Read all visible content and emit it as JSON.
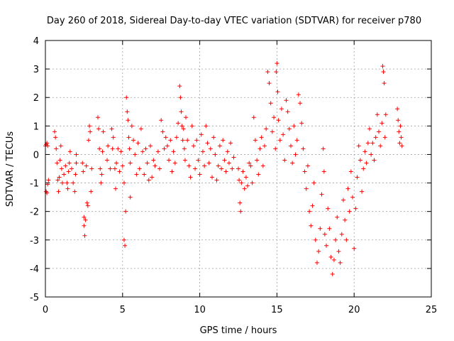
{
  "chart_data": {
    "type": "scatter",
    "title": "Day 260 of 2018, Sidereal Day-to-day VTEC variation (SDTVAR) for receiver p780",
    "xlabel": "GPS time / hours",
    "ylabel": "SDTVAR / TECUs",
    "xlim": [
      0,
      25
    ],
    "ylim": [
      -5,
      4
    ],
    "xticks": [
      0,
      5,
      10,
      15,
      20,
      25
    ],
    "yticks": [
      -5,
      -4,
      -3,
      -2,
      -1,
      0,
      1,
      2,
      3,
      4
    ],
    "xtick_labels": [
      "0",
      "5",
      "10",
      "15",
      "20",
      "25"
    ],
    "ytick_labels": [
      "-5",
      "-4",
      "-3",
      "-2",
      "-1",
      "0",
      "1",
      "2",
      "3",
      "4"
    ],
    "grid": true,
    "marker": "+",
    "color": "#ff0000",
    "series": [
      {
        "name": "SDTVAR",
        "points": [
          [
            0.0,
            0.3
          ],
          [
            0.05,
            0.35
          ],
          [
            0.1,
            0.4
          ],
          [
            0.15,
            0.3
          ],
          [
            0.05,
            -1.3
          ],
          [
            0.1,
            -1.35
          ],
          [
            0.15,
            -1.05
          ],
          [
            0.2,
            -0.9
          ],
          [
            0.6,
            0.8
          ],
          [
            0.65,
            0.6
          ],
          [
            0.7,
            0.2
          ],
          [
            0.75,
            -0.3
          ],
          [
            0.8,
            -0.9
          ],
          [
            0.85,
            -1.3
          ],
          [
            0.9,
            -0.8
          ],
          [
            0.95,
            -0.2
          ],
          [
            1.0,
            0.3
          ],
          [
            1.05,
            -0.5
          ],
          [
            1.1,
            -1.0
          ],
          [
            1.2,
            -0.7
          ],
          [
            1.3,
            -0.4
          ],
          [
            1.4,
            -1.0
          ],
          [
            1.45,
            -1.2
          ],
          [
            1.5,
            -0.6
          ],
          [
            1.55,
            -0.3
          ],
          [
            1.6,
            0.1
          ],
          [
            1.7,
            -0.5
          ],
          [
            1.8,
            -1.0
          ],
          [
            1.9,
            -1.3
          ],
          [
            1.95,
            -0.7
          ],
          [
            2.0,
            -0.3
          ],
          [
            2.0,
            0.0
          ],
          [
            2.4,
            -0.3
          ],
          [
            2.45,
            -0.6
          ],
          [
            2.5,
            -2.2
          ],
          [
            2.5,
            -2.5
          ],
          [
            2.55,
            -2.85
          ],
          [
            2.6,
            -2.3
          ],
          [
            2.65,
            -0.4
          ],
          [
            2.7,
            -1.7
          ],
          [
            2.75,
            -1.8
          ],
          [
            2.8,
            0.5
          ],
          [
            2.85,
            1.0
          ],
          [
            2.9,
            0.8
          ],
          [
            2.95,
            -1.3
          ],
          [
            3.0,
            -0.5
          ],
          [
            3.4,
            1.3
          ],
          [
            3.45,
            0.9
          ],
          [
            3.5,
            0.2
          ],
          [
            3.55,
            -0.5
          ],
          [
            3.6,
            -1.0
          ],
          [
            3.65,
            -0.7
          ],
          [
            3.7,
            0.1
          ],
          [
            3.75,
            0.8
          ],
          [
            4.0,
            -0.2
          ],
          [
            4.05,
            0.3
          ],
          [
            4.2,
            -0.5
          ],
          [
            4.3,
            0.9
          ],
          [
            4.35,
            0.2
          ],
          [
            4.4,
            0.6
          ],
          [
            4.5,
            -0.5
          ],
          [
            4.55,
            -1.2
          ],
          [
            4.6,
            -0.3
          ],
          [
            4.7,
            0.2
          ],
          [
            4.8,
            -0.6
          ],
          [
            4.9,
            0.1
          ],
          [
            5.0,
            -0.4
          ],
          [
            5.1,
            -1.0
          ],
          [
            5.1,
            -3.0
          ],
          [
            5.15,
            -3.2
          ],
          [
            5.2,
            -2.0
          ],
          [
            5.25,
            2.0
          ],
          [
            5.3,
            1.5
          ],
          [
            5.35,
            1.2
          ],
          [
            5.4,
            0.6
          ],
          [
            5.45,
            0.2
          ],
          [
            5.5,
            -0.3
          ],
          [
            5.5,
            -1.5
          ],
          [
            5.6,
            1.0
          ],
          [
            5.7,
            0.5
          ],
          [
            5.8,
            0.0
          ],
          [
            5.9,
            -0.7
          ],
          [
            6.0,
            0.4
          ],
          [
            6.1,
            -0.5
          ],
          [
            6.2,
            0.9
          ],
          [
            6.3,
            0.1
          ],
          [
            6.4,
            -0.7
          ],
          [
            6.5,
            0.2
          ],
          [
            6.6,
            -0.3
          ],
          [
            6.7,
            -0.9
          ],
          [
            6.8,
            0.3
          ],
          [
            6.9,
            -0.8
          ],
          [
            7.0,
            -0.2
          ],
          [
            7.1,
            -0.4
          ],
          [
            7.3,
            0.1
          ],
          [
            7.4,
            -0.5
          ],
          [
            7.5,
            1.2
          ],
          [
            7.6,
            0.8
          ],
          [
            7.7,
            0.2
          ],
          [
            7.8,
            0.6
          ],
          [
            7.9,
            0.3
          ],
          [
            8.0,
            -0.2
          ],
          [
            8.1,
            0.5
          ],
          [
            8.2,
            -0.6
          ],
          [
            8.3,
            0.1
          ],
          [
            8.4,
            -0.3
          ],
          [
            8.5,
            0.6
          ],
          [
            8.6,
            1.1
          ],
          [
            8.7,
            2.4
          ],
          [
            8.75,
            2.0
          ],
          [
            8.8,
            1.5
          ],
          [
            8.85,
            1.0
          ],
          [
            8.9,
            0.5
          ],
          [
            8.95,
            0.9
          ],
          [
            9.0,
            0.2
          ],
          [
            9.05,
            -0.2
          ],
          [
            9.1,
            1.3
          ],
          [
            9.2,
            0.5
          ],
          [
            9.3,
            -0.4
          ],
          [
            9.4,
            -0.8
          ],
          [
            9.5,
            1.0
          ],
          [
            9.6,
            0.3
          ],
          [
            9.7,
            -0.5
          ],
          [
            9.8,
            0.5
          ],
          [
            9.9,
            -0.2
          ],
          [
            10.0,
            -0.7
          ],
          [
            10.1,
            0.7
          ],
          [
            10.2,
            0.1
          ],
          [
            10.3,
            -0.4
          ],
          [
            10.4,
            1.0
          ],
          [
            10.5,
            0.4
          ],
          [
            10.6,
            -0.3
          ],
          [
            10.7,
            0.2
          ],
          [
            10.8,
            -0.8
          ],
          [
            10.9,
            0.6
          ],
          [
            11.0,
            0.0
          ],
          [
            11.1,
            -0.9
          ],
          [
            11.2,
            -0.4
          ],
          [
            11.3,
            0.3
          ],
          [
            11.4,
            -0.5
          ],
          [
            11.5,
            0.5
          ],
          [
            11.6,
            -0.2
          ],
          [
            11.7,
            -0.6
          ],
          [
            11.8,
            0.1
          ],
          [
            11.9,
            -0.3
          ],
          [
            12.0,
            0.4
          ],
          [
            12.1,
            -0.5
          ],
          [
            12.2,
            -0.1
          ],
          [
            12.5,
            -0.5
          ],
          [
            12.55,
            -0.9
          ],
          [
            12.6,
            -1.7
          ],
          [
            12.65,
            -2.0
          ],
          [
            12.7,
            -1.0
          ],
          [
            12.8,
            -0.6
          ],
          [
            12.9,
            -1.2
          ],
          [
            13.0,
            -0.8
          ],
          [
            13.1,
            -1.1
          ],
          [
            13.2,
            -0.3
          ],
          [
            13.3,
            -0.4
          ],
          [
            13.4,
            -1.0
          ],
          [
            13.5,
            1.3
          ],
          [
            13.6,
            0.5
          ],
          [
            13.7,
            -0.2
          ],
          [
            13.8,
            -0.7
          ],
          [
            13.9,
            0.2
          ],
          [
            14.0,
            0.6
          ],
          [
            14.1,
            -0.4
          ],
          [
            14.2,
            0.3
          ],
          [
            14.3,
            0.9
          ],
          [
            14.4,
            2.9
          ],
          [
            14.5,
            2.5
          ],
          [
            14.6,
            1.8
          ],
          [
            14.7,
            0.8
          ],
          [
            14.8,
            1.3
          ],
          [
            14.9,
            0.2
          ],
          [
            14.95,
            2.9
          ],
          [
            15.0,
            3.2
          ],
          [
            15.05,
            2.2
          ],
          [
            15.1,
            1.2
          ],
          [
            15.2,
            0.5
          ],
          [
            15.3,
            1.6
          ],
          [
            15.4,
            0.7
          ],
          [
            15.5,
            -0.2
          ],
          [
            15.6,
            1.9
          ],
          [
            15.7,
            1.5
          ],
          [
            15.8,
            0.9
          ],
          [
            15.9,
            0.3
          ],
          [
            16.0,
            -0.3
          ],
          [
            16.1,
            1.0
          ],
          [
            16.2,
            0.0
          ],
          [
            16.3,
            0.5
          ],
          [
            16.4,
            2.1
          ],
          [
            16.5,
            1.8
          ],
          [
            16.6,
            1.1
          ],
          [
            16.7,
            0.2
          ],
          [
            16.8,
            -0.6
          ],
          [
            16.9,
            -1.2
          ],
          [
            17.0,
            -0.4
          ],
          [
            17.1,
            -2.0
          ],
          [
            17.2,
            -2.5
          ],
          [
            17.3,
            -1.8
          ],
          [
            17.4,
            -1.0
          ],
          [
            17.5,
            -3.0
          ],
          [
            17.6,
            -3.8
          ],
          [
            17.7,
            -3.4
          ],
          [
            17.8,
            -2.6
          ],
          [
            17.9,
            -1.4
          ],
          [
            18.0,
            0.2
          ],
          [
            18.05,
            -0.6
          ],
          [
            18.1,
            -2.8
          ],
          [
            18.2,
            -3.2
          ],
          [
            18.3,
            -1.9
          ],
          [
            18.4,
            -2.6
          ],
          [
            18.5,
            -3.6
          ],
          [
            18.6,
            -4.2
          ],
          [
            18.7,
            -3.7
          ],
          [
            18.8,
            -3.0
          ],
          [
            18.9,
            -2.2
          ],
          [
            19.0,
            -3.4
          ],
          [
            19.1,
            -3.8
          ],
          [
            19.2,
            -2.8
          ],
          [
            19.3,
            -1.6
          ],
          [
            19.4,
            -2.3
          ],
          [
            19.5,
            -3.0
          ],
          [
            19.6,
            -1.2
          ],
          [
            19.7,
            -2.0
          ],
          [
            19.8,
            -0.6
          ],
          [
            19.9,
            -1.5
          ],
          [
            20.0,
            -3.3
          ],
          [
            20.1,
            -1.9
          ],
          [
            20.2,
            -0.8
          ],
          [
            20.3,
            0.3
          ],
          [
            20.4,
            -0.2
          ],
          [
            20.5,
            -1.3
          ],
          [
            20.6,
            -0.5
          ],
          [
            20.7,
            0.1
          ],
          [
            20.8,
            -0.3
          ],
          [
            20.9,
            0.4
          ],
          [
            21.0,
            0.9
          ],
          [
            21.1,
            0.0
          ],
          [
            21.2,
            0.4
          ],
          [
            21.3,
            -0.2
          ],
          [
            21.4,
            0.6
          ],
          [
            21.5,
            1.4
          ],
          [
            21.6,
            0.8
          ],
          [
            21.7,
            0.3
          ],
          [
            21.8,
            1.1
          ],
          [
            21.85,
            3.1
          ],
          [
            21.9,
            2.9
          ],
          [
            21.95,
            2.5
          ],
          [
            22.0,
            0.6
          ],
          [
            22.05,
            1.4
          ],
          [
            22.8,
            1.6
          ],
          [
            22.85,
            1.2
          ],
          [
            22.9,
            0.8
          ],
          [
            22.95,
            0.4
          ],
          [
            23.0,
            1.0
          ],
          [
            23.05,
            0.6
          ],
          [
            23.1,
            0.3
          ]
        ]
      }
    ]
  }
}
